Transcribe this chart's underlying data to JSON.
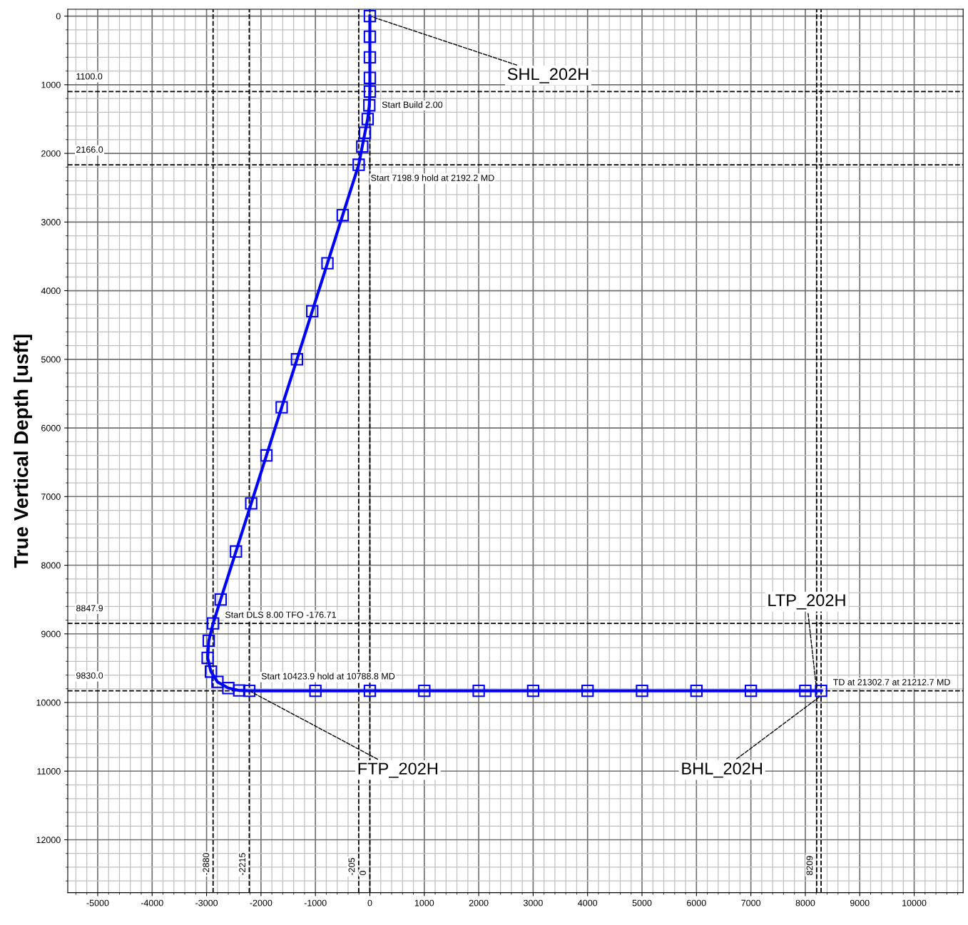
{
  "chart_data": {
    "type": "line",
    "ylabel": "True Vertical Depth [usft]",
    "series": [
      {
        "color": "#0000ff",
        "x": [
          0,
          0,
          0,
          0,
          0,
          -10,
          -40,
          -90,
          -140,
          -205,
          -499,
          -779,
          -1059,
          -1339,
          -1620,
          -1900,
          -2180,
          -2460,
          -2741,
          -2880,
          -2960,
          -2980,
          -2920,
          -2800,
          -2600,
          -2400,
          -2215,
          -1000,
          0,
          1000,
          2000,
          3000,
          4000,
          5000,
          6000,
          7000,
          8000,
          8290
        ],
        "values": [
          0,
          300,
          600,
          900,
          1100,
          1300,
          1500,
          1700,
          1900,
          2166,
          2900,
          3600,
          4300,
          5000,
          5700,
          6400,
          7100,
          7800,
          8500,
          8848,
          9100,
          9350,
          9550,
          9700,
          9790,
          9825,
          9830,
          9830,
          9830,
          9830,
          9830,
          9830,
          9830,
          9830,
          9830,
          9830,
          9830,
          9830
        ]
      }
    ],
    "marker": "square",
    "line_style": "solid",
    "xlim": [
      -5550,
      10900
    ],
    "ylim": [
      12770,
      -100
    ],
    "xticks": [
      -5000,
      -4000,
      -3000,
      -2000,
      -1000,
      0,
      1000,
      2000,
      3000,
      4000,
      5000,
      6000,
      7000,
      8000,
      9000,
      10000
    ],
    "yticks": [
      0,
      1000,
      2000,
      3000,
      4000,
      5000,
      6000,
      7000,
      8000,
      9000,
      10000,
      11000,
      12000
    ],
    "grid": true,
    "ref_lines": [
      {
        "axis": "y",
        "value": 1100,
        "label": "1100.0",
        "line_style": "dashed",
        "color": "#000000"
      },
      {
        "axis": "y",
        "value": 2166,
        "label": "2166.0",
        "line_style": "dashed",
        "color": "#000000"
      },
      {
        "axis": "y",
        "value": 8847.9,
        "label": "8847.9",
        "line_style": "dashed",
        "color": "#000000"
      },
      {
        "axis": "y",
        "value": 9830,
        "label": "9830.0",
        "line_style": "dashed",
        "color": "#000000"
      },
      {
        "axis": "x",
        "value": 0,
        "label": "0",
        "line_style": "dashed",
        "color": "#000000"
      },
      {
        "axis": "x",
        "value": -205,
        "label": "-205",
        "line_style": "dashed",
        "color": "#000000"
      },
      {
        "axis": "x",
        "value": -2880,
        "label": "-2880",
        "line_style": "dashed",
        "color": "#000000"
      },
      {
        "axis": "x",
        "value": -2215,
        "label": "-2215",
        "line_style": "dashed",
        "color": "#000000"
      },
      {
        "axis": "x",
        "value": 8209,
        "label": "8209",
        "line_style": "dashed",
        "color": "#000000"
      },
      {
        "axis": "x",
        "value": 8290,
        "label": null,
        "line_style": "dashed",
        "color": "#000000"
      }
    ],
    "annotations": [
      {
        "text": "Start Build 2.00",
        "x": 0,
        "y": 1100
      },
      {
        "text": "Start 7198.9 hold at 2192.2 MD",
        "x": -205,
        "y": 2166
      },
      {
        "text": "Start DLS 8.00 TFO -176.71",
        "x": -2880,
        "y": 8848
      },
      {
        "text": "Start 10423.9 hold at 10788.8 MD",
        "x": -2215,
        "y": 9830
      },
      {
        "text": "TD at 21302.7 at 21212.7 MD",
        "x": 8290,
        "y": 9830
      },
      {
        "text": "SHL_202H",
        "x": 0,
        "y": 0
      },
      {
        "text": "FTP_202H",
        "x": -2215,
        "y": 9830
      },
      {
        "text": "LTP_202H",
        "x": 8209,
        "y": 9830
      },
      {
        "text": "BHL_202H",
        "x": 8290,
        "y": 9900
      }
    ]
  }
}
